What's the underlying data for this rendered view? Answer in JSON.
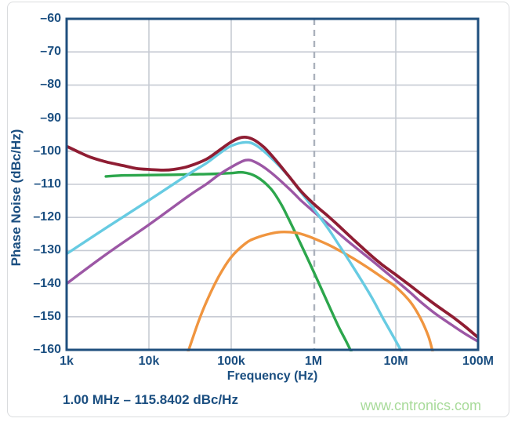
{
  "figure": {
    "watermark": "www.cntronics.com",
    "colors": {
      "text": "#1A4E80",
      "frame": "#1F4F7E",
      "grid": "#C7CBD4",
      "dashed_marker": "#ABB1BC",
      "watermark": "#A8DB9A",
      "border": "#DADCDE",
      "background": "#FFFFFF"
    }
  },
  "chart_data": {
    "type": "line",
    "title": "",
    "xlabel": "Frequency (Hz)",
    "ylabel": "Phase Noise (dBc/Hz)",
    "x_scale": "log",
    "y_scale": "linear",
    "xlim": [
      1000,
      100000000
    ],
    "ylim": [
      -160,
      -60
    ],
    "grid": true,
    "legend": "none",
    "x_ticks": [
      {
        "value": 1000,
        "label": "1k"
      },
      {
        "value": 10000,
        "label": "10k"
      },
      {
        "value": 100000,
        "label": "100k"
      },
      {
        "value": 1000000,
        "label": "1M"
      },
      {
        "value": 10000000,
        "label": "10M"
      },
      {
        "value": 100000000,
        "label": "100M"
      }
    ],
    "y_ticks": [
      {
        "value": -60,
        "label": "–60"
      },
      {
        "value": -70,
        "label": "–70"
      },
      {
        "value": -80,
        "label": "–80"
      },
      {
        "value": -90,
        "label": "–90"
      },
      {
        "value": -100,
        "label": "–100"
      },
      {
        "value": -110,
        "label": "–110"
      },
      {
        "value": -120,
        "label": "–120"
      },
      {
        "value": -130,
        "label": "–130"
      },
      {
        "value": -140,
        "label": "–140"
      },
      {
        "value": -150,
        "label": "–150"
      },
      {
        "value": -160,
        "label": "–160"
      }
    ],
    "marker": {
      "x": 1000000,
      "style": "vertical-dashed",
      "annotation": "1.00 MHz – 115.8402 dBc/Hz",
      "value_at_marker": -115.8402
    },
    "series": [
      {
        "name": "green",
        "color": "#2CA64C",
        "width": 3.4,
        "points": [
          [
            3000,
            -107.6
          ],
          [
            5000,
            -107.3
          ],
          [
            10000,
            -107.2
          ],
          [
            20000,
            -107.1
          ],
          [
            30000,
            -107.0
          ],
          [
            50000,
            -106.9
          ],
          [
            70000,
            -106.8
          ],
          [
            100000,
            -106.6
          ],
          [
            140000,
            -106.4
          ],
          [
            200000,
            -107.6
          ],
          [
            300000,
            -111.2
          ],
          [
            400000,
            -115.8
          ],
          [
            500000,
            -120.5
          ],
          [
            700000,
            -128.0
          ],
          [
            1000000,
            -136.3
          ],
          [
            1500000,
            -146.0
          ],
          [
            2000000,
            -152.8
          ],
          [
            2500000,
            -157.5
          ],
          [
            3000000,
            -161.5
          ]
        ]
      },
      {
        "name": "orange",
        "color": "#F0953F",
        "width": 3.4,
        "points": [
          [
            30000,
            -160.5
          ],
          [
            40000,
            -151.5
          ],
          [
            50000,
            -145.5
          ],
          [
            70000,
            -138.0
          ],
          [
            100000,
            -132.0
          ],
          [
            150000,
            -127.8
          ],
          [
            200000,
            -126.2
          ],
          [
            300000,
            -124.9
          ],
          [
            400000,
            -124.4
          ],
          [
            600000,
            -124.6
          ],
          [
            800000,
            -125.4
          ],
          [
            1000000,
            -126.3
          ],
          [
            1500000,
            -128.2
          ],
          [
            2000000,
            -129.8
          ],
          [
            3000000,
            -132.3
          ],
          [
            5000000,
            -135.8
          ],
          [
            7000000,
            -138.3
          ],
          [
            10000000,
            -141.0
          ],
          [
            15000000,
            -145.5
          ],
          [
            20000000,
            -150.5
          ],
          [
            25000000,
            -156.0
          ],
          [
            28000000,
            -160.5
          ]
        ]
      },
      {
        "name": "purple",
        "color": "#9C57A5",
        "width": 3.4,
        "points": [
          [
            1000,
            -140.0
          ],
          [
            3000,
            -131.2
          ],
          [
            10000,
            -122.2
          ],
          [
            30000,
            -113.6
          ],
          [
            50000,
            -109.9
          ],
          [
            70000,
            -107.2
          ],
          [
            100000,
            -104.8
          ],
          [
            150000,
            -102.7
          ],
          [
            200000,
            -103.4
          ],
          [
            300000,
            -106.3
          ],
          [
            500000,
            -111.2
          ],
          [
            700000,
            -114.8
          ],
          [
            1000000,
            -118.2
          ],
          [
            1500000,
            -122.0
          ],
          [
            2000000,
            -124.7
          ],
          [
            3000000,
            -128.4
          ],
          [
            5000000,
            -132.8
          ],
          [
            7000000,
            -135.8
          ],
          [
            10000000,
            -139.0
          ],
          [
            15000000,
            -142.7
          ],
          [
            20000000,
            -145.5
          ],
          [
            30000000,
            -149.0
          ],
          [
            50000000,
            -152.8
          ],
          [
            70000000,
            -155.2
          ],
          [
            100000000,
            -157.5
          ]
        ]
      },
      {
        "name": "cyan",
        "color": "#67CBE2",
        "width": 3.4,
        "points": [
          [
            1000,
            -131.0
          ],
          [
            3000,
            -123.2
          ],
          [
            10000,
            -114.8
          ],
          [
            30000,
            -107.0
          ],
          [
            50000,
            -103.6
          ],
          [
            70000,
            -100.9
          ],
          [
            100000,
            -98.4
          ],
          [
            150000,
            -97.3
          ],
          [
            200000,
            -98.2
          ],
          [
            300000,
            -101.8
          ],
          [
            500000,
            -107.6
          ],
          [
            700000,
            -112.3
          ],
          [
            1000000,
            -117.3
          ],
          [
            1500000,
            -123.3
          ],
          [
            2000000,
            -128.0
          ],
          [
            3000000,
            -134.8
          ],
          [
            5000000,
            -143.8
          ],
          [
            7000000,
            -150.5
          ],
          [
            10000000,
            -157.3
          ],
          [
            12000000,
            -161.0
          ]
        ]
      },
      {
        "name": "dark-red-total",
        "color": "#8F1D33",
        "width": 3.8,
        "points": [
          [
            1000,
            -98.5
          ],
          [
            1500,
            -100.6
          ],
          [
            2000,
            -101.9
          ],
          [
            3000,
            -103.2
          ],
          [
            5000,
            -104.4
          ],
          [
            7000,
            -105.2
          ],
          [
            10000,
            -105.5
          ],
          [
            15000,
            -105.7
          ],
          [
            20000,
            -105.5
          ],
          [
            30000,
            -104.6
          ],
          [
            50000,
            -102.4
          ],
          [
            70000,
            -99.9
          ],
          [
            100000,
            -97.2
          ],
          [
            135000,
            -95.8
          ],
          [
            180000,
            -96.3
          ],
          [
            250000,
            -98.8
          ],
          [
            350000,
            -102.8
          ],
          [
            500000,
            -107.5
          ],
          [
            700000,
            -112.0
          ],
          [
            1000000,
            -115.84
          ],
          [
            1500000,
            -119.6
          ],
          [
            2000000,
            -122.4
          ],
          [
            3000000,
            -126.5
          ],
          [
            5000000,
            -131.5
          ],
          [
            7000000,
            -134.5
          ],
          [
            10000000,
            -137.3
          ],
          [
            15000000,
            -140.6
          ],
          [
            20000000,
            -143.0
          ],
          [
            30000000,
            -146.3
          ],
          [
            50000000,
            -150.2
          ],
          [
            70000000,
            -153.0
          ],
          [
            100000000,
            -156.3
          ]
        ]
      }
    ]
  }
}
